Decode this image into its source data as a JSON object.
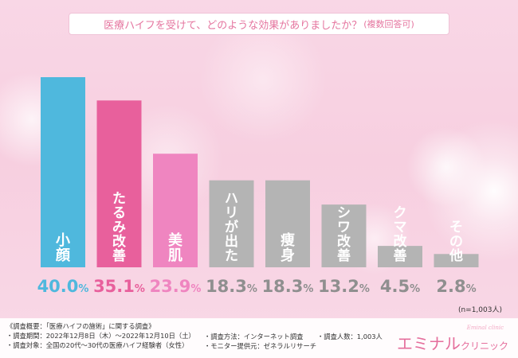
{
  "header": {
    "title": "医療ハイフを受けて、どのような効果がありましたか？",
    "subtitle": "(複数回答可)"
  },
  "chart_data": {
    "type": "bar",
    "title": "医療ハイフを受けて、どのような効果がありましたか？(複数回答可)",
    "categories": [
      "小顔",
      "たるみ改善",
      "美肌",
      "ハリが出た",
      "痩身",
      "シワ改善",
      "クマ改善",
      "その他"
    ],
    "values": [
      40.0,
      35.1,
      23.9,
      18.3,
      18.3,
      13.2,
      4.5,
      2.8
    ],
    "value_labels": [
      "40.0%",
      "35.1%",
      "23.9%",
      "18.3%",
      "18.3%",
      "13.2%",
      "4.5%",
      "2.8%"
    ],
    "unit": "%",
    "ylim": [
      0,
      40
    ],
    "grid": false,
    "legend": "none",
    "colors": [
      "#4fb8dd",
      "#e8609c",
      "#ef85c0",
      "#b4b4b4",
      "#b4b4b4",
      "#b4b4b4",
      "#b4b4b4",
      "#b4b4b4"
    ],
    "label_colors": [
      "#4fb8dd",
      "#e8609c",
      "#ef85c0",
      "#8f8f8f",
      "#8f8f8f",
      "#8f8f8f",
      "#8f8f8f",
      "#8f8f8f"
    ]
  },
  "sample_note": "(n=1,003人)",
  "survey": {
    "overview": "《調査概要：「医療ハイフの施術」に関する調査》",
    "period": "・調査期間：2022年12月8日（木）〜2022年12月10日（土）",
    "target": "・調査対象：全国の20代〜30代の医療ハイフ経験者（女性）",
    "method": "・調査方法：インターネット調査",
    "provider": "・モニター提供元：ゼネラルリサーチ",
    "count": "・調査人数：1,003人"
  },
  "logo": {
    "name": "エミナル",
    "suffix": "クリニック",
    "tagline": "Eminal clinic"
  }
}
